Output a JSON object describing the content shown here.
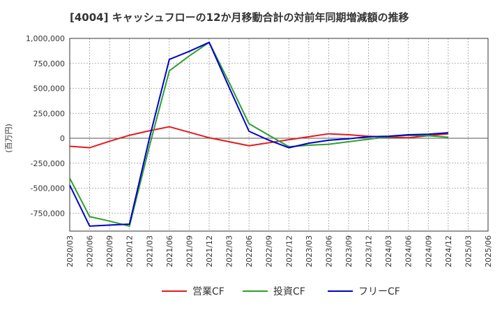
{
  "chart_data": {
    "type": "line",
    "title": "[4004]  キャッシュフローの12か月移動合計の対前年同期増減額の推移",
    "ylabel": "(百万円)",
    "xlabel": "",
    "ylim": [
      -930000,
      1000000
    ],
    "yticks": [
      1000000,
      750000,
      500000,
      250000,
      0,
      -250000,
      -500000,
      -750000
    ],
    "ytick_labels": [
      "1,000,000",
      "750,000",
      "500,000",
      "250,000",
      "0",
      "-250,000",
      "-500,000",
      "-750,000"
    ],
    "x": [
      "2020/03",
      "2020/06",
      "2020/09",
      "2020/12",
      "2021/03",
      "2021/06",
      "2021/09",
      "2021/12",
      "2022/03",
      "2022/06",
      "2022/09",
      "2022/12",
      "2023/03",
      "2023/06",
      "2023/09",
      "2023/12",
      "2024/03",
      "2024/06",
      "2024/09",
      "2024/12",
      "2025/03",
      "2025/06"
    ],
    "grid": true,
    "legend_position": "bottom",
    "series": [
      {
        "name": "営業CF",
        "color": "#e41a1c",
        "values": [
          -80000,
          -95000,
          -30000,
          30000,
          75000,
          115000,
          60000,
          5000,
          -35000,
          -75000,
          -45000,
          -15000,
          15000,
          45000,
          35000,
          20000,
          10000,
          5000,
          25000,
          45000,
          null,
          null
        ]
      },
      {
        "name": "投資CF",
        "color": "#2ca02c",
        "values": [
          -400000,
          -785000,
          -830000,
          -880000,
          -80000,
          675000,
          825000,
          960000,
          560000,
          145000,
          30000,
          -85000,
          -70000,
          -60000,
          -35000,
          -10000,
          15000,
          30000,
          25000,
          10000,
          null,
          null
        ]
      },
      {
        "name": "フリーCF",
        "color": "#0000cd",
        "values": [
          -470000,
          -880000,
          -870000,
          -860000,
          0,
          790000,
          870000,
          960000,
          510000,
          70000,
          -20000,
          -95000,
          -50000,
          -20000,
          -5000,
          15000,
          20000,
          35000,
          40000,
          55000,
          null,
          null
        ]
      }
    ]
  }
}
